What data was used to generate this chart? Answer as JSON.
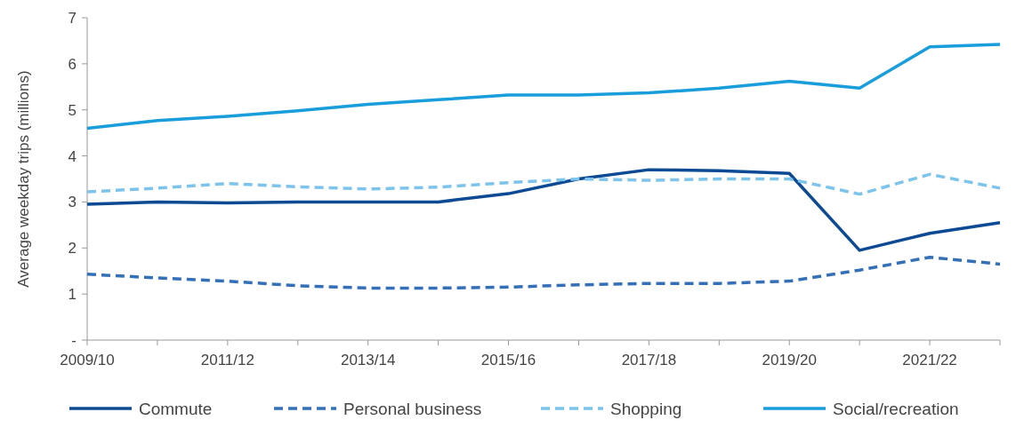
{
  "chart_data": {
    "type": "line",
    "ylabel": "Average weekday trips (millions)",
    "categories": [
      "2009/10",
      null,
      "2011/12",
      null,
      "2013/14",
      null,
      "2015/16",
      null,
      "2017/18",
      null,
      "2019/20",
      null,
      "2021/22",
      null
    ],
    "ylim": [
      0,
      7
    ],
    "yticks": [
      {
        "value": 0,
        "label": "-"
      },
      1,
      2,
      3,
      4,
      5,
      6,
      7
    ],
    "grid": false,
    "legend": "bottom",
    "marker": "none",
    "series": [
      {
        "name": "Commute",
        "color": "#0d4a94",
        "line_style": "solid",
        "values": [
          2.95,
          3.0,
          2.98,
          3.0,
          3.0,
          3.0,
          3.18,
          3.5,
          3.7,
          3.68,
          3.62,
          1.95,
          2.32,
          2.55
        ]
      },
      {
        "name": "Personal business",
        "color": "#3470b8",
        "line_style": "dashed",
        "values": [
          1.43,
          1.35,
          1.28,
          1.18,
          1.13,
          1.13,
          1.15,
          1.2,
          1.23,
          1.23,
          1.28,
          1.52,
          1.8,
          1.65
        ]
      },
      {
        "name": "Shopping",
        "color": "#7cc4ec",
        "line_style": "dashed",
        "values": [
          3.22,
          3.3,
          3.4,
          3.33,
          3.28,
          3.32,
          3.42,
          3.5,
          3.47,
          3.5,
          3.5,
          3.17,
          3.6,
          3.3
        ]
      },
      {
        "name": "Social/recreation",
        "color": "#1a9ddb",
        "line_style": "solid",
        "values": [
          4.6,
          4.77,
          4.86,
          4.98,
          5.12,
          5.22,
          5.32,
          5.32,
          5.37,
          5.47,
          5.62,
          5.47,
          6.37,
          6.42
        ]
      }
    ]
  }
}
